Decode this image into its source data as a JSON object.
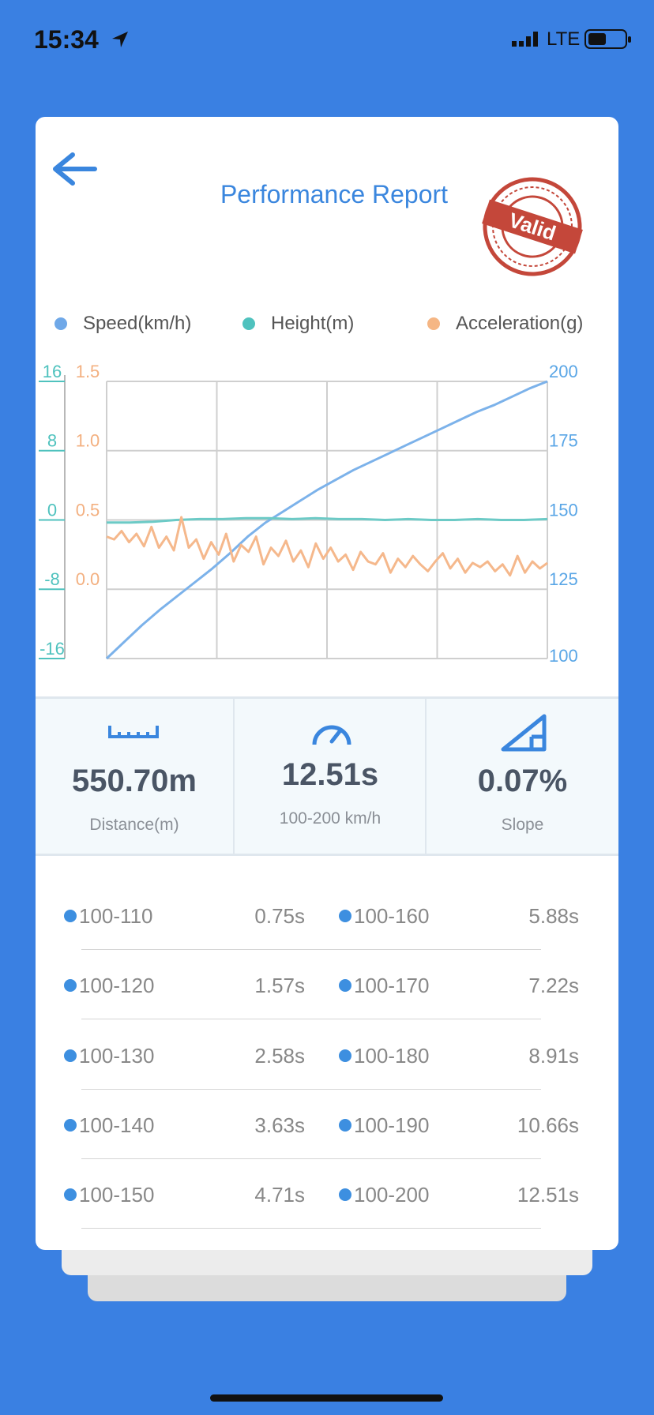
{
  "status_bar": {
    "time": "15:34",
    "network": "LTE"
  },
  "header": {
    "title": "Performance Report",
    "stamp": "Valid"
  },
  "chart_data": {
    "type": "line",
    "series": [
      {
        "name": "Speed(km/h)",
        "color": "#7cb2ea",
        "legend_color": "#6fa8e8",
        "axis": "y2",
        "values": [
          100,
          106,
          112,
          117.5,
          122.5,
          127.5,
          132.5,
          138,
          144,
          149,
          153,
          157,
          161,
          164.5,
          168,
          171,
          174,
          177,
          180,
          183,
          186,
          189,
          191.5,
          194.5,
          197.5,
          200
        ]
      },
      {
        "name": "Height(m)",
        "color": "#6ccac6",
        "legend_color": "#4fc2be",
        "axis": "y",
        "values": [
          -0.3,
          -0.3,
          -0.2,
          0,
          0.1,
          0.1,
          0.2,
          0.2,
          0.1,
          0.2,
          0.1,
          0.1,
          0,
          0.1,
          0,
          0,
          0.1,
          0,
          0,
          0.1
        ]
      },
      {
        "name": "Acceleration(g)",
        "color": "#f5b88c",
        "legend_color": "#f5b684",
        "axis": "y3",
        "values": [
          0.38,
          0.36,
          0.42,
          0.34,
          0.4,
          0.31,
          0.45,
          0.3,
          0.38,
          0.28,
          0.52,
          0.3,
          0.36,
          0.22,
          0.34,
          0.25,
          0.4,
          0.2,
          0.32,
          0.27,
          0.38,
          0.18,
          0.3,
          0.24,
          0.35,
          0.2,
          0.28,
          0.16,
          0.33,
          0.22,
          0.3,
          0.2,
          0.25,
          0.14,
          0.27,
          0.2,
          0.18,
          0.26,
          0.12,
          0.22,
          0.16,
          0.24,
          0.18,
          0.13,
          0.2,
          0.26,
          0.15,
          0.22,
          0.12,
          0.19,
          0.16,
          0.2,
          0.13,
          0.18,
          0.1,
          0.24,
          0.12,
          0.2,
          0.15,
          0.19
        ]
      }
    ],
    "ylim": [
      -16,
      16
    ],
    "yticks": [
      -16,
      -8,
      0,
      8,
      16
    ],
    "ytick_color": "#4fc2be",
    "y2lim": [
      100,
      200
    ],
    "y2ticks": [
      100,
      125,
      150,
      175,
      200
    ],
    "y2tick_color": "#5aa6e6",
    "y3lim": [
      -0.5,
      1.5
    ],
    "y3ticks": [
      {
        "value": 0,
        "label": "0.0"
      },
      0.5,
      {
        "value": 1,
        "label": "1.0"
      },
      1.5
    ],
    "y3tick_color": "#f3b080",
    "grid": true
  },
  "stats": [
    {
      "value": "550.70m",
      "label": "Distance(m)"
    },
    {
      "value": "12.51s",
      "label": "100-200 km/h"
    },
    {
      "value": "0.07%",
      "label": "Slope"
    }
  ],
  "splits": [
    {
      "range": "100-110",
      "time": "0.75s"
    },
    {
      "range": "100-160",
      "time": "5.88s"
    },
    {
      "range": "100-120",
      "time": "1.57s"
    },
    {
      "range": "100-170",
      "time": "7.22s"
    },
    {
      "range": "100-130",
      "time": "2.58s"
    },
    {
      "range": "100-180",
      "time": "8.91s"
    },
    {
      "range": "100-140",
      "time": "3.63s"
    },
    {
      "range": "100-190",
      "time": "10.66s"
    },
    {
      "range": "100-150",
      "time": "4.71s"
    },
    {
      "range": "100-200",
      "time": "12.51s"
    }
  ]
}
